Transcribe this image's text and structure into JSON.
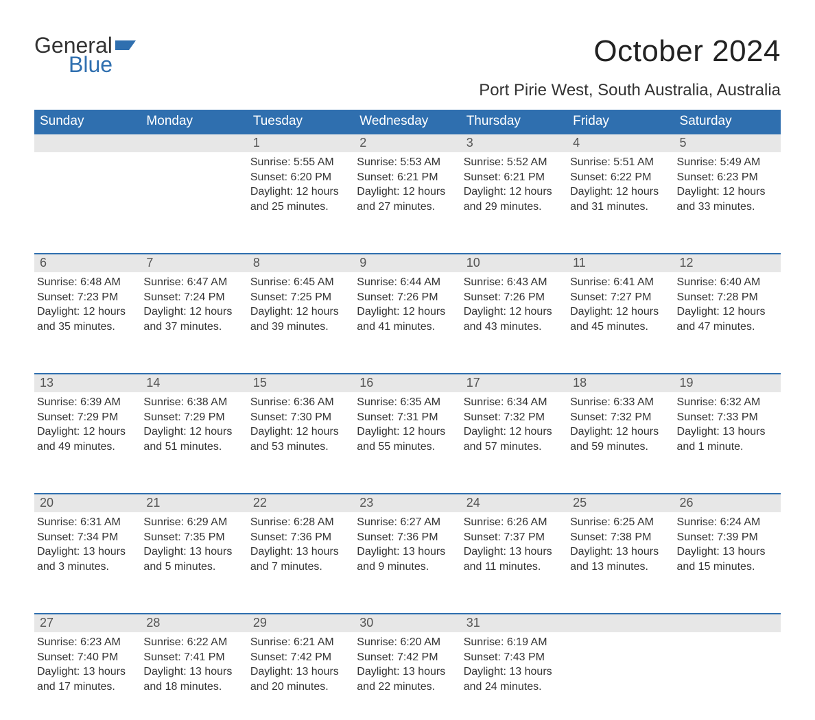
{
  "brand": {
    "line1": "General",
    "line2": "Blue",
    "accent_color": "#2f6faf"
  },
  "title": "October 2024",
  "location": "Port Pirie West, South Australia, Australia",
  "colors": {
    "header_bg": "#2f6faf",
    "header_text": "#ffffff",
    "daynum_bg": "#e7e7e7",
    "daynum_border": "#2f6faf",
    "body_text": "#333333",
    "page_bg": "#ffffff"
  },
  "day_headers": [
    "Sunday",
    "Monday",
    "Tuesday",
    "Wednesday",
    "Thursday",
    "Friday",
    "Saturday"
  ],
  "weeks": [
    [
      null,
      null,
      {
        "n": "1",
        "sr": "5:55 AM",
        "ss": "6:20 PM",
        "dl": "12 hours and 25 minutes."
      },
      {
        "n": "2",
        "sr": "5:53 AM",
        "ss": "6:21 PM",
        "dl": "12 hours and 27 minutes."
      },
      {
        "n": "3",
        "sr": "5:52 AM",
        "ss": "6:21 PM",
        "dl": "12 hours and 29 minutes."
      },
      {
        "n": "4",
        "sr": "5:51 AM",
        "ss": "6:22 PM",
        "dl": "12 hours and 31 minutes."
      },
      {
        "n": "5",
        "sr": "5:49 AM",
        "ss": "6:23 PM",
        "dl": "12 hours and 33 minutes."
      }
    ],
    [
      {
        "n": "6",
        "sr": "6:48 AM",
        "ss": "7:23 PM",
        "dl": "12 hours and 35 minutes."
      },
      {
        "n": "7",
        "sr": "6:47 AM",
        "ss": "7:24 PM",
        "dl": "12 hours and 37 minutes."
      },
      {
        "n": "8",
        "sr": "6:45 AM",
        "ss": "7:25 PM",
        "dl": "12 hours and 39 minutes."
      },
      {
        "n": "9",
        "sr": "6:44 AM",
        "ss": "7:26 PM",
        "dl": "12 hours and 41 minutes."
      },
      {
        "n": "10",
        "sr": "6:43 AM",
        "ss": "7:26 PM",
        "dl": "12 hours and 43 minutes."
      },
      {
        "n": "11",
        "sr": "6:41 AM",
        "ss": "7:27 PM",
        "dl": "12 hours and 45 minutes."
      },
      {
        "n": "12",
        "sr": "6:40 AM",
        "ss": "7:28 PM",
        "dl": "12 hours and 47 minutes."
      }
    ],
    [
      {
        "n": "13",
        "sr": "6:39 AM",
        "ss": "7:29 PM",
        "dl": "12 hours and 49 minutes."
      },
      {
        "n": "14",
        "sr": "6:38 AM",
        "ss": "7:29 PM",
        "dl": "12 hours and 51 minutes."
      },
      {
        "n": "15",
        "sr": "6:36 AM",
        "ss": "7:30 PM",
        "dl": "12 hours and 53 minutes."
      },
      {
        "n": "16",
        "sr": "6:35 AM",
        "ss": "7:31 PM",
        "dl": "12 hours and 55 minutes."
      },
      {
        "n": "17",
        "sr": "6:34 AM",
        "ss": "7:32 PM",
        "dl": "12 hours and 57 minutes."
      },
      {
        "n": "18",
        "sr": "6:33 AM",
        "ss": "7:32 PM",
        "dl": "12 hours and 59 minutes."
      },
      {
        "n": "19",
        "sr": "6:32 AM",
        "ss": "7:33 PM",
        "dl": "13 hours and 1 minute."
      }
    ],
    [
      {
        "n": "20",
        "sr": "6:31 AM",
        "ss": "7:34 PM",
        "dl": "13 hours and 3 minutes."
      },
      {
        "n": "21",
        "sr": "6:29 AM",
        "ss": "7:35 PM",
        "dl": "13 hours and 5 minutes."
      },
      {
        "n": "22",
        "sr": "6:28 AM",
        "ss": "7:36 PM",
        "dl": "13 hours and 7 minutes."
      },
      {
        "n": "23",
        "sr": "6:27 AM",
        "ss": "7:36 PM",
        "dl": "13 hours and 9 minutes."
      },
      {
        "n": "24",
        "sr": "6:26 AM",
        "ss": "7:37 PM",
        "dl": "13 hours and 11 minutes."
      },
      {
        "n": "25",
        "sr": "6:25 AM",
        "ss": "7:38 PM",
        "dl": "13 hours and 13 minutes."
      },
      {
        "n": "26",
        "sr": "6:24 AM",
        "ss": "7:39 PM",
        "dl": "13 hours and 15 minutes."
      }
    ],
    [
      {
        "n": "27",
        "sr": "6:23 AM",
        "ss": "7:40 PM",
        "dl": "13 hours and 17 minutes."
      },
      {
        "n": "28",
        "sr": "6:22 AM",
        "ss": "7:41 PM",
        "dl": "13 hours and 18 minutes."
      },
      {
        "n": "29",
        "sr": "6:21 AM",
        "ss": "7:42 PM",
        "dl": "13 hours and 20 minutes."
      },
      {
        "n": "30",
        "sr": "6:20 AM",
        "ss": "7:42 PM",
        "dl": "13 hours and 22 minutes."
      },
      {
        "n": "31",
        "sr": "6:19 AM",
        "ss": "7:43 PM",
        "dl": "13 hours and 24 minutes."
      },
      null,
      null
    ]
  ],
  "labels": {
    "sunrise": "Sunrise: ",
    "sunset": "Sunset: ",
    "daylight": "Daylight: "
  }
}
